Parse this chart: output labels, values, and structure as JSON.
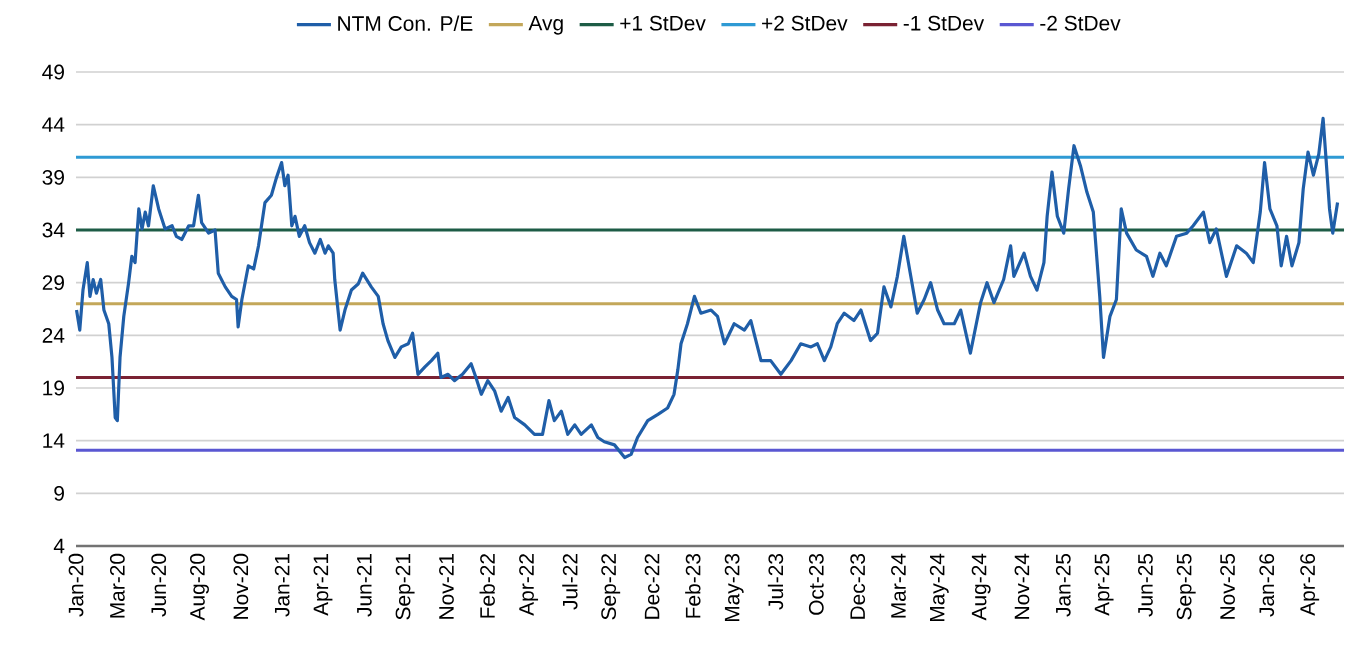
{
  "chart_data": {
    "type": "line",
    "x": [
      "2020-01-06",
      "2020-01-12",
      "2020-01-18",
      "2020-01-26",
      "2020-01-31",
      "2020-02-06",
      "2020-02-12",
      "2020-02-20",
      "2020-02-26",
      "2020-03-06",
      "2020-03-12",
      "2020-03-18",
      "2020-03-22",
      "2020-03-27",
      "2020-04-03",
      "2020-04-12",
      "2020-04-18",
      "2020-04-24",
      "2020-05-01",
      "2020-05-07",
      "2020-05-13",
      "2020-05-19",
      "2020-05-28",
      "2020-06-07",
      "2020-06-19",
      "2020-07-02",
      "2020-07-10",
      "2020-07-20",
      "2020-08-02",
      "2020-08-11",
      "2020-08-20",
      "2020-08-26",
      "2020-09-08",
      "2020-09-20",
      "2020-09-26",
      "2020-10-09",
      "2020-10-21",
      "2020-10-30",
      "2020-11-02",
      "2020-11-09",
      "2020-11-21",
      "2020-12-01",
      "2020-12-10",
      "2020-12-22",
      "2021-01-03",
      "2021-01-12",
      "2021-01-22",
      "2021-01-28",
      "2021-02-03",
      "2021-02-10",
      "2021-02-16",
      "2021-02-24",
      "2021-03-06",
      "2021-03-15",
      "2021-03-25",
      "2021-04-04",
      "2021-04-13",
      "2021-04-19",
      "2021-04-28",
      "2021-05-01",
      "2021-05-11",
      "2021-05-20",
      "2021-06-01",
      "2021-06-14",
      "2021-06-22",
      "2021-07-08",
      "2021-07-21",
      "2021-07-30",
      "2021-08-08",
      "2021-08-21",
      "2021-09-02",
      "2021-09-15",
      "2021-09-23",
      "2021-10-03",
      "2021-10-16",
      "2021-10-28",
      "2021-11-09",
      "2021-11-15",
      "2021-11-28",
      "2021-12-10",
      "2021-12-25",
      "2022-01-10",
      "2022-01-19",
      "2022-01-29",
      "2022-02-10",
      "2022-02-23",
      "2022-03-07",
      "2022-03-20",
      "2022-04-01",
      "2022-04-20",
      "2022-05-08",
      "2022-05-23",
      "2022-06-04",
      "2022-06-14",
      "2022-06-27",
      "2022-07-09",
      "2022-07-22",
      "2022-08-03",
      "2022-08-22",
      "2022-09-03",
      "2022-09-15",
      "2022-10-04",
      "2022-10-23",
      "2022-11-04",
      "2022-11-16",
      "2022-12-05",
      "2022-12-24",
      "2023-01-11",
      "2023-01-23",
      "2023-01-30",
      "2023-02-05",
      "2023-02-17",
      "2023-03-02",
      "2023-03-14",
      "2023-04-02",
      "2023-04-14",
      "2023-04-27",
      "2023-05-15",
      "2023-06-03",
      "2023-06-15",
      "2023-07-04",
      "2023-07-22",
      "2023-08-10",
      "2023-08-29",
      "2023-09-16",
      "2023-10-05",
      "2023-10-17",
      "2023-10-30",
      "2023-11-11",
      "2023-11-23",
      "2023-12-06",
      "2023-12-24",
      "2024-01-06",
      "2024-01-24",
      "2024-02-06",
      "2024-02-18",
      "2024-03-02",
      "2024-03-14",
      "2024-03-26",
      "2024-04-08",
      "2024-04-20",
      "2024-05-03",
      "2024-05-15",
      "2024-05-28",
      "2024-06-09",
      "2024-06-28",
      "2024-07-10",
      "2024-07-28",
      "2024-08-16",
      "2024-08-28",
      "2024-09-10",
      "2024-09-28",
      "2024-10-11",
      "2024-10-17",
      "2024-11-05",
      "2024-11-17",
      "2024-11-29",
      "2024-12-12",
      "2024-12-18",
      "2024-12-27",
      "2025-01-06",
      "2025-01-18",
      "2025-01-27",
      "2025-02-06",
      "2025-02-18",
      "2025-03-02",
      "2025-03-14",
      "2025-03-26",
      "2025-04-02",
      "2025-04-14",
      "2025-04-26",
      "2025-05-05",
      "2025-05-15",
      "2025-06-02",
      "2025-06-21",
      "2025-07-03",
      "2025-07-16",
      "2025-07-28",
      "2025-08-16",
      "2025-09-04",
      "2025-09-16",
      "2025-10-05",
      "2025-10-17",
      "2025-10-29",
      "2025-11-17",
      "2025-12-06",
      "2025-12-24",
      "2026-01-06",
      "2026-01-19",
      "2026-01-27",
      "2026-02-06",
      "2026-02-19",
      "2026-02-27",
      "2026-03-09",
      "2026-03-19",
      "2026-04-01",
      "2026-04-09",
      "2026-04-18",
      "2026-04-28",
      "2026-05-08",
      "2026-05-16",
      "2026-05-22",
      "2026-05-28",
      "2026-06-03",
      "2026-06-12"
    ],
    "series": [
      {
        "name": "NTM Con. P/E",
        "color": "#1f5ea8",
        "values": [
          26.4,
          24.5,
          28.3,
          30.9,
          27.7,
          29.3,
          28.0,
          29.3,
          26.4,
          25.1,
          21.9,
          16.2,
          15.9,
          21.9,
          25.8,
          29.0,
          31.5,
          30.9,
          36.0,
          34.1,
          35.7,
          34.4,
          38.2,
          36.0,
          34.1,
          34.4,
          33.4,
          33.1,
          34.4,
          34.4,
          37.3,
          34.7,
          33.7,
          34.0,
          29.9,
          28.6,
          27.7,
          27.4,
          24.8,
          27.4,
          30.6,
          30.3,
          32.5,
          36.6,
          37.3,
          38.9,
          40.4,
          38.2,
          39.2,
          34.4,
          35.3,
          33.4,
          34.4,
          32.8,
          31.8,
          33.1,
          31.8,
          32.5,
          31.8,
          29.3,
          24.5,
          26.4,
          28.3,
          28.9,
          29.9,
          28.6,
          27.7,
          25.1,
          23.5,
          21.9,
          22.9,
          23.2,
          24.2,
          20.3,
          21.0,
          21.6,
          22.3,
          20.0,
          20.3,
          19.7,
          20.3,
          21.3,
          20.0,
          18.4,
          19.7,
          18.7,
          16.8,
          18.1,
          16.2,
          15.5,
          14.6,
          14.6,
          17.8,
          15.9,
          16.8,
          14.6,
          15.5,
          14.6,
          15.5,
          14.3,
          13.9,
          13.6,
          12.4,
          12.7,
          14.3,
          15.9,
          16.5,
          17.1,
          18.4,
          20.7,
          23.2,
          25.1,
          27.7,
          26.1,
          26.4,
          25.8,
          23.2,
          25.1,
          24.5,
          25.4,
          21.6,
          21.6,
          20.3,
          21.6,
          23.2,
          22.9,
          23.2,
          21.6,
          22.9,
          25.1,
          26.1,
          25.4,
          26.4,
          23.5,
          24.2,
          28.6,
          26.7,
          29.6,
          33.4,
          29.6,
          26.1,
          27.4,
          29.0,
          26.4,
          25.1,
          25.1,
          26.4,
          22.3,
          27.1,
          29.0,
          27.1,
          29.3,
          32.5,
          29.6,
          31.8,
          29.6,
          28.3,
          30.9,
          35.3,
          39.5,
          35.3,
          33.7,
          37.9,
          42.0,
          40.1,
          37.6,
          35.7,
          27.7,
          21.9,
          25.8,
          27.4,
          36.0,
          33.7,
          32.1,
          31.5,
          29.6,
          31.8,
          30.6,
          33.4,
          33.7,
          34.4,
          35.7,
          32.8,
          34.1,
          29.6,
          32.5,
          31.8,
          30.9,
          35.7,
          40.4,
          36.0,
          34.4,
          30.6,
          33.4,
          30.6,
          32.8,
          37.9,
          41.4,
          39.2,
          41.2,
          44.6,
          40.4,
          36.0,
          33.7,
          36.6
        ]
      }
    ],
    "ref_lines": [
      {
        "axis": "y",
        "value": 27.0,
        "label": "Avg",
        "color": "#c3a75a"
      },
      {
        "axis": "y",
        "value": 34.0,
        "label": "+1 StDev",
        "color": "#1d5c46"
      },
      {
        "axis": "y",
        "value": 40.9,
        "label": "+2 StDev",
        "color": "#2e9ad4"
      },
      {
        "axis": "y",
        "value": 20.0,
        "label": "-1 StDev",
        "color": "#7a2233"
      },
      {
        "axis": "y",
        "value": 13.1,
        "label": "-2 StDev",
        "color": "#5a57d2"
      }
    ],
    "xlim": [
      "2020-01-05",
      "2026-06-24"
    ],
    "ylim": [
      4,
      49
    ],
    "yticks": [
      4,
      9,
      14,
      19,
      24,
      29,
      34,
      39,
      44,
      49
    ],
    "xticks": [
      {
        "value": "2020-01-05",
        "label": "Jan-20"
      },
      {
        "value": "2020-03-22",
        "label": "Mar-20"
      },
      {
        "value": "2020-06-07",
        "label": "Jun-20"
      },
      {
        "value": "2020-08-22",
        "label": "Aug-20"
      },
      {
        "value": "2020-11-07",
        "label": "Nov-20"
      },
      {
        "value": "2021-01-23",
        "label": "Jan-21"
      },
      {
        "value": "2021-04-09",
        "label": "Apr-21"
      },
      {
        "value": "2021-06-25",
        "label": "Jun-21"
      },
      {
        "value": "2021-09-09",
        "label": "Sep-21"
      },
      {
        "value": "2021-11-25",
        "label": "Nov-21"
      },
      {
        "value": "2022-02-09",
        "label": "Feb-22"
      },
      {
        "value": "2022-04-27",
        "label": "Apr-22"
      },
      {
        "value": "2022-07-13",
        "label": "Jul-22"
      },
      {
        "value": "2022-09-27",
        "label": "Sep-22"
      },
      {
        "value": "2022-12-13",
        "label": "Dec-22"
      },
      {
        "value": "2023-02-27",
        "label": "Feb-23"
      },
      {
        "value": "2023-05-15",
        "label": "May-23"
      },
      {
        "value": "2023-07-31",
        "label": "Jul-23"
      },
      {
        "value": "2023-10-15",
        "label": "Oct-23"
      },
      {
        "value": "2023-12-31",
        "label": "Dec-23"
      },
      {
        "value": "2024-03-16",
        "label": "Mar-24"
      },
      {
        "value": "2024-05-31",
        "label": "May-24"
      },
      {
        "value": "2024-08-17",
        "label": "Aug-24"
      },
      {
        "value": "2024-11-01",
        "label": "Nov-24"
      },
      {
        "value": "2025-01-17",
        "label": "Jan-25"
      },
      {
        "value": "2025-04-03",
        "label": "Apr-25"
      },
      {
        "value": "2025-06-19",
        "label": "Jun-25"
      },
      {
        "value": "2025-09-03",
        "label": "Sep-25"
      },
      {
        "value": "2025-11-19",
        "label": "Nov-25"
      },
      {
        "value": "2026-01-31",
        "label": "Jan-26"
      },
      {
        "value": "2026-04-21",
        "label": "Apr-26"
      }
    ],
    "grid": "y",
    "legend": "top"
  }
}
